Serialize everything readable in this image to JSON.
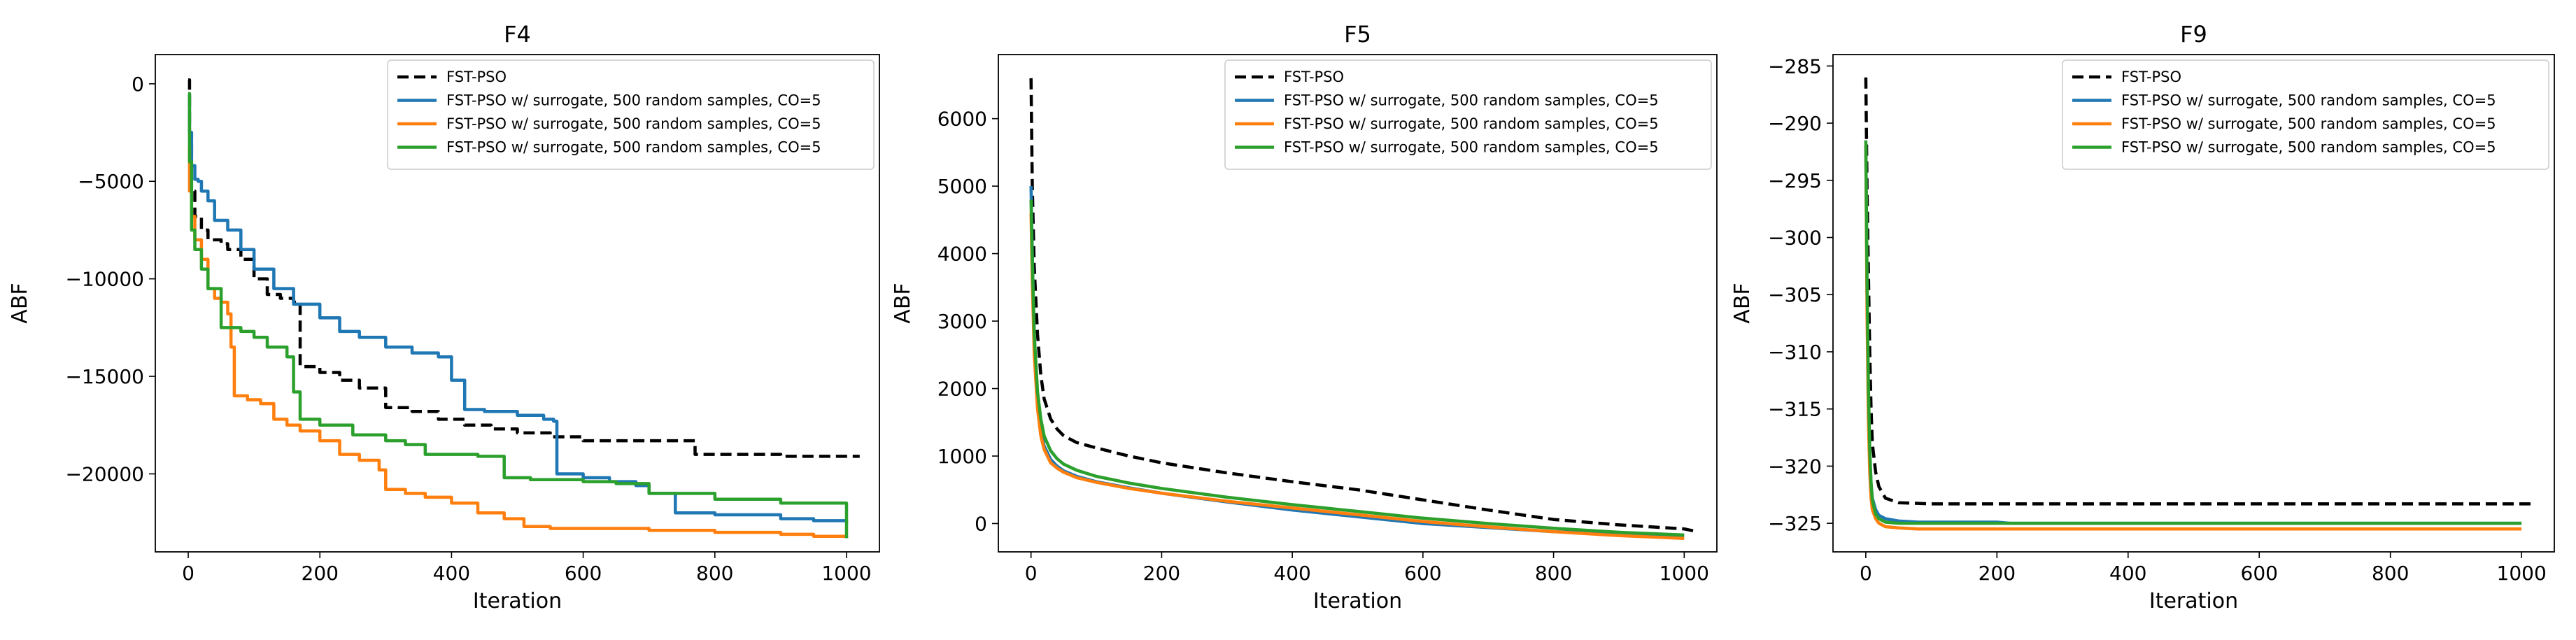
{
  "colors": {
    "fst_pso": "#000000",
    "series_blue": "#1f77b4",
    "series_orange": "#ff7f0e",
    "series_green": "#2ca02c",
    "axis": "#000000",
    "legend_border": "#cccccc"
  },
  "chart_data": [
    {
      "type": "line",
      "title": "F4",
      "xlabel": "Iteration",
      "ylabel": "ABF",
      "xlim": [
        -50,
        1050
      ],
      "ylim": [
        -24000,
        1500
      ],
      "xticks": [
        0,
        200,
        400,
        600,
        800,
        1000
      ],
      "xtick_labels": [
        "0",
        "200",
        "400",
        "600",
        "800",
        "1000"
      ],
      "yticks": [
        0,
        -5000,
        -10000,
        -15000,
        -20000
      ],
      "ytick_labels": [
        "0",
        "−5000",
        "−10000",
        "−15000",
        "−20000"
      ],
      "legend_position": "top-right",
      "series": [
        {
          "name": "FST-PSO",
          "color": "#000000",
          "dashed": true,
          "x": [
            0,
            2,
            5,
            10,
            20,
            30,
            50,
            60,
            80,
            100,
            120,
            140,
            160,
            170,
            200,
            230,
            260,
            300,
            340,
            380,
            420,
            460,
            500,
            550,
            600,
            650,
            700,
            740,
            770,
            800,
            850,
            900,
            950,
            1000,
            1020
          ],
          "y": [
            200,
            -2500,
            -5500,
            -6800,
            -7500,
            -8000,
            -8200,
            -8500,
            -9000,
            -10000,
            -10800,
            -11000,
            -11200,
            -14500,
            -14800,
            -15200,
            -15600,
            -16600,
            -16800,
            -17200,
            -17500,
            -17700,
            -17900,
            -18100,
            -18300,
            -18300,
            -18300,
            -18300,
            -19000,
            -19000,
            -19000,
            -19100,
            -19100,
            -19100,
            -19100
          ]
        },
        {
          "name": "FST-PSO w/ surrogate, 500 random samples, CO=5",
          "color": "#1f77b4",
          "dashed": false,
          "x": [
            0,
            2,
            5,
            10,
            15,
            20,
            30,
            40,
            60,
            80,
            100,
            130,
            160,
            200,
            230,
            260,
            300,
            340,
            380,
            400,
            420,
            450,
            500,
            540,
            555,
            560,
            600,
            640,
            680,
            700,
            740,
            800,
            900,
            950,
            1000
          ],
          "y": [
            -500,
            -2500,
            -4200,
            -4900,
            -5000,
            -5500,
            -6000,
            -7000,
            -7500,
            -8500,
            -9500,
            -10500,
            -11300,
            -12000,
            -12700,
            -13000,
            -13500,
            -13800,
            -14000,
            -15200,
            -16700,
            -16800,
            -17000,
            -17200,
            -17300,
            -20000,
            -20200,
            -20400,
            -20600,
            -21000,
            -22000,
            -22100,
            -22300,
            -22400,
            -22500
          ]
        },
        {
          "name": "FST-PSO w/ surrogate, 500 random samples, CO=5",
          "color": "#ff7f0e",
          "dashed": false,
          "x": [
            0,
            2,
            5,
            10,
            20,
            30,
            40,
            50,
            60,
            65,
            70,
            90,
            110,
            130,
            150,
            170,
            200,
            230,
            260,
            290,
            300,
            330,
            360,
            400,
            440,
            480,
            510,
            550,
            600,
            700,
            800,
            900,
            950,
            1000
          ],
          "y": [
            -3200,
            -5500,
            -6800,
            -8000,
            -9000,
            -10500,
            -11000,
            -11200,
            -11800,
            -13500,
            -16000,
            -16200,
            -16400,
            -17200,
            -17500,
            -17800,
            -18300,
            -19000,
            -19300,
            -19800,
            -20800,
            -21000,
            -21200,
            -21500,
            -22000,
            -22300,
            -22700,
            -22800,
            -22800,
            -22900,
            -23000,
            -23100,
            -23200,
            -23300
          ]
        },
        {
          "name": "FST-PSO w/ surrogate, 500 random samples, CO=5",
          "color": "#2ca02c",
          "dashed": false,
          "x": [
            0,
            2,
            5,
            10,
            20,
            30,
            50,
            80,
            100,
            120,
            150,
            160,
            170,
            200,
            250,
            300,
            330,
            360,
            400,
            440,
            480,
            520,
            560,
            600,
            650,
            700,
            800,
            900,
            950,
            980,
            1000
          ],
          "y": [
            -500,
            -4000,
            -7500,
            -8500,
            -9500,
            -10500,
            -12500,
            -12700,
            -13000,
            -13500,
            -14000,
            -15800,
            -17200,
            -17500,
            -18000,
            -18300,
            -18500,
            -19000,
            -19000,
            -19100,
            -20200,
            -20300,
            -20300,
            -20400,
            -20500,
            -21000,
            -21300,
            -21500,
            -21500,
            -21500,
            -23300
          ]
        }
      ]
    },
    {
      "type": "line",
      "title": "F5",
      "xlabel": "Iteration",
      "ylabel": "ABF",
      "xlim": [
        -50,
        1050
      ],
      "ylim": [
        -420,
        6950
      ],
      "xticks": [
        0,
        200,
        400,
        600,
        800,
        1000
      ],
      "xtick_labels": [
        "0",
        "200",
        "400",
        "600",
        "800",
        "1000"
      ],
      "yticks": [
        0,
        1000,
        2000,
        3000,
        4000,
        5000,
        6000
      ],
      "ytick_labels": [
        "0",
        "1000",
        "2000",
        "3000",
        "4000",
        "5000",
        "6000"
      ],
      "legend_position": "top-right",
      "series": [
        {
          "name": "FST-PSO",
          "color": "#000000",
          "dashed": true,
          "x": [
            0,
            2,
            5,
            10,
            15,
            20,
            30,
            40,
            50,
            70,
            100,
            150,
            200,
            300,
            400,
            500,
            600,
            700,
            800,
            900,
            1000,
            1020
          ],
          "y": [
            6600,
            5000,
            3800,
            2800,
            2200,
            1850,
            1550,
            1400,
            1300,
            1200,
            1120,
            1000,
            900,
            750,
            620,
            500,
            350,
            200,
            60,
            -20,
            -80,
            -120
          ]
        },
        {
          "name": "FST-PSO w/ surrogate, 500 random samples, CO=5",
          "color": "#1f77b4",
          "dashed": false,
          "x": [
            0,
            2,
            5,
            10,
            15,
            20,
            30,
            40,
            50,
            70,
            100,
            150,
            200,
            300,
            400,
            500,
            600,
            700,
            800,
            900,
            1000
          ],
          "y": [
            5000,
            4000,
            2800,
            1800,
            1400,
            1150,
            950,
            850,
            780,
            700,
            620,
            530,
            450,
            320,
            200,
            100,
            0,
            -60,
            -120,
            -150,
            -180
          ]
        },
        {
          "name": "FST-PSO w/ surrogate, 500 random samples, CO=5",
          "color": "#ff7f0e",
          "dashed": false,
          "x": [
            0,
            2,
            5,
            10,
            15,
            20,
            30,
            40,
            50,
            70,
            100,
            150,
            200,
            300,
            400,
            500,
            600,
            700,
            800,
            900,
            1000
          ],
          "y": [
            4600,
            3600,
            2500,
            1700,
            1300,
            1100,
            900,
            820,
            760,
            680,
            610,
            520,
            450,
            330,
            230,
            130,
            30,
            -50,
            -120,
            -180,
            -220
          ]
        },
        {
          "name": "FST-PSO w/ surrogate, 500 random samples, CO=5",
          "color": "#2ca02c",
          "dashed": false,
          "x": [
            0,
            2,
            5,
            10,
            15,
            20,
            30,
            40,
            50,
            70,
            100,
            150,
            200,
            300,
            400,
            500,
            600,
            700,
            800,
            900,
            1000
          ],
          "y": [
            4800,
            3900,
            2800,
            1950,
            1550,
            1300,
            1080,
            960,
            880,
            790,
            700,
            600,
            520,
            390,
            280,
            180,
            80,
            0,
            -70,
            -130,
            -170
          ]
        }
      ]
    },
    {
      "type": "line",
      "title": "F9",
      "xlabel": "Iteration",
      "ylabel": "ABF",
      "xlim": [
        -50,
        1050
      ],
      "ylim": [
        -327.5,
        -284
      ],
      "xticks": [
        0,
        200,
        400,
        600,
        800,
        1000
      ],
      "xtick_labels": [
        "0",
        "200",
        "400",
        "600",
        "800",
        "1000"
      ],
      "yticks": [
        -285,
        -290,
        -295,
        -300,
        -305,
        -310,
        -315,
        -320,
        -325
      ],
      "ytick_labels": [
        "−285",
        "−290",
        "−295",
        "−300",
        "−305",
        "−310",
        "−315",
        "−320",
        "−325"
      ],
      "legend_position": "top-right",
      "series": [
        {
          "name": "FST-PSO",
          "color": "#000000",
          "dashed": true,
          "x": [
            0,
            2,
            4,
            6,
            8,
            10,
            15,
            20,
            30,
            50,
            100,
            200,
            400,
            600,
            800,
            1000,
            1020
          ],
          "y": [
            -286,
            -296,
            -303,
            -310,
            -315,
            -318,
            -320.5,
            -321.8,
            -322.8,
            -323.2,
            -323.3,
            -323.3,
            -323.3,
            -323.3,
            -323.3,
            -323.3,
            -323.3
          ]
        },
        {
          "name": "FST-PSO w/ surrogate, 500 random samples, CO=5",
          "color": "#1f77b4",
          "dashed": false,
          "x": [
            0,
            2,
            4,
            6,
            8,
            10,
            15,
            20,
            30,
            50,
            80,
            100,
            200,
            220,
            400,
            600,
            800,
            1000
          ],
          "y": [
            -292,
            -305,
            -314,
            -319,
            -321.5,
            -322.8,
            -323.8,
            -324.3,
            -324.6,
            -324.8,
            -324.9,
            -324.9,
            -324.9,
            -325.0,
            -325.0,
            -325.0,
            -325.0,
            -325.0
          ]
        },
        {
          "name": "FST-PSO w/ surrogate, 500 random samples, CO=5",
          "color": "#ff7f0e",
          "dashed": false,
          "x": [
            0,
            2,
            4,
            6,
            8,
            10,
            15,
            20,
            30,
            50,
            80,
            100,
            200,
            400,
            600,
            800,
            1000
          ],
          "y": [
            -292,
            -307,
            -316,
            -320.5,
            -322.8,
            -323.8,
            -324.6,
            -325.0,
            -325.3,
            -325.4,
            -325.5,
            -325.5,
            -325.5,
            -325.5,
            -325.5,
            -325.5,
            -325.5
          ]
        },
        {
          "name": "FST-PSO w/ surrogate, 500 random samples, CO=5",
          "color": "#2ca02c",
          "dashed": false,
          "x": [
            0,
            2,
            4,
            6,
            8,
            10,
            15,
            20,
            30,
            50,
            80,
            100,
            200,
            400,
            600,
            800,
            1000
          ],
          "y": [
            -291.5,
            -304,
            -313,
            -318.5,
            -321.5,
            -323,
            -324.2,
            -324.6,
            -324.9,
            -325.0,
            -325.0,
            -325.0,
            -325.0,
            -325.0,
            -325.0,
            -325.0,
            -325.0
          ]
        }
      ]
    }
  ]
}
